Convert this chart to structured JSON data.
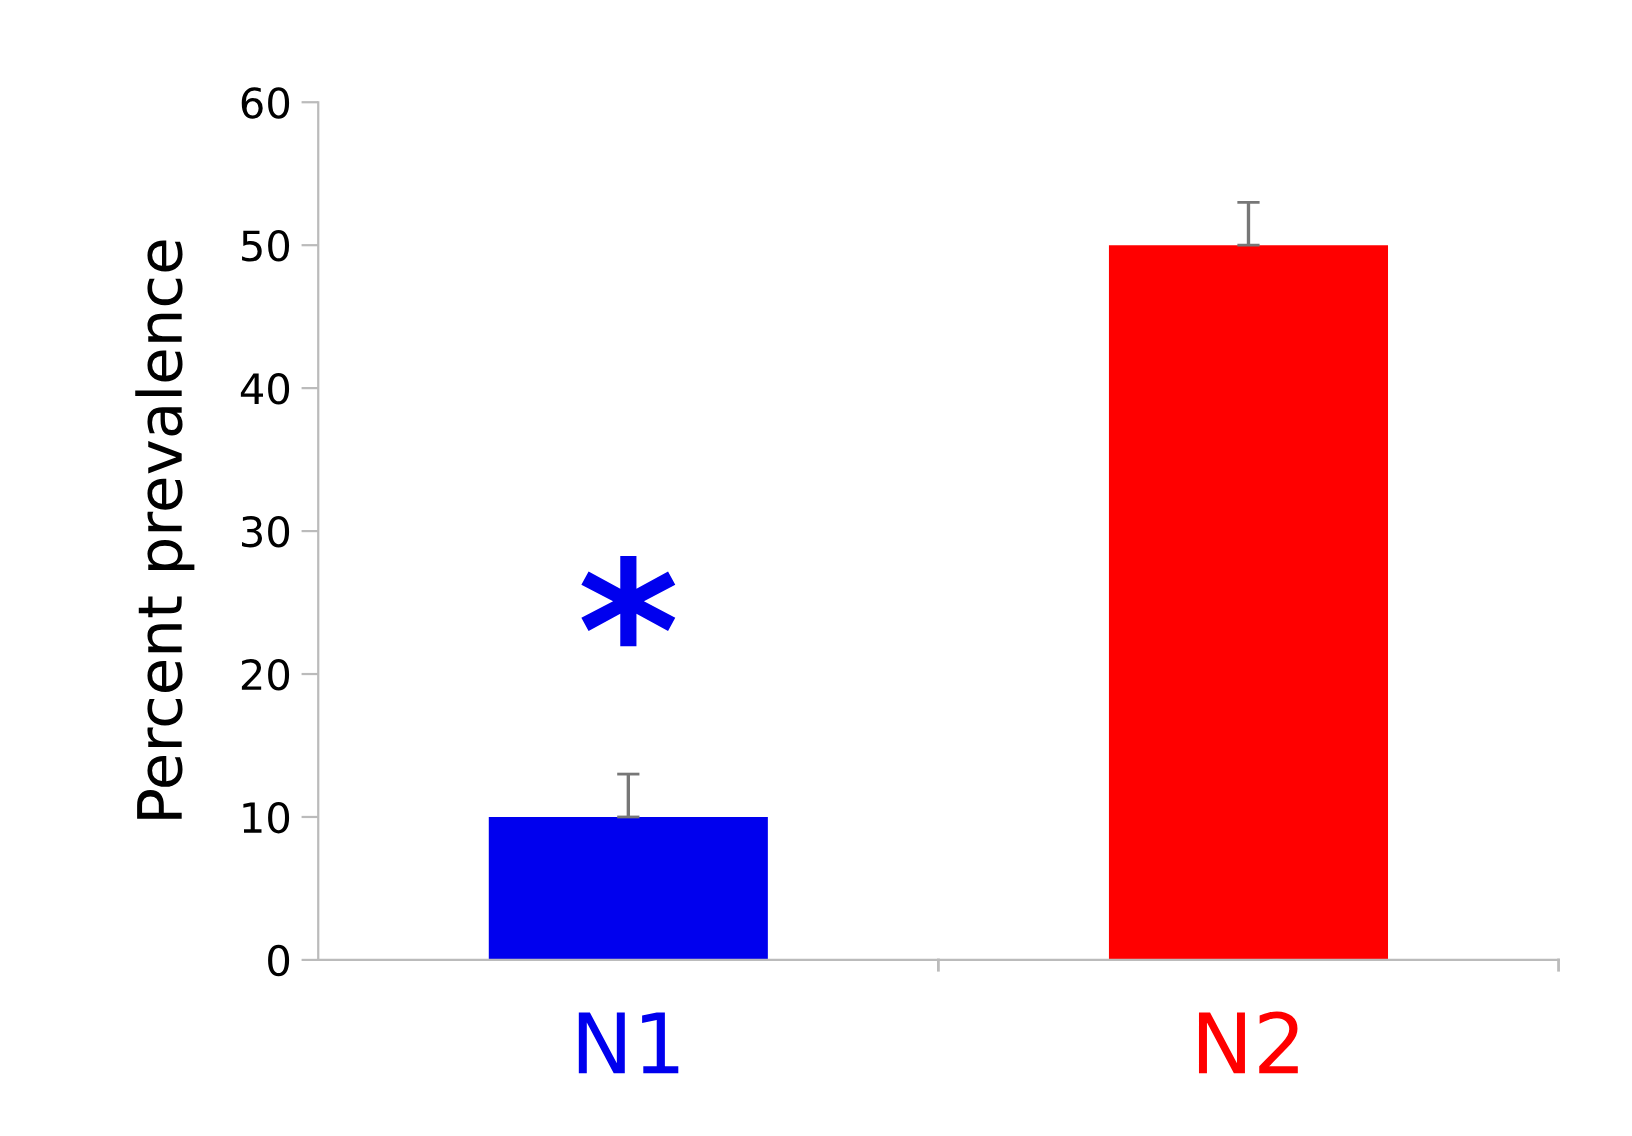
{
  "chart_data": {
    "type": "bar",
    "categories": [
      "N1",
      "N2"
    ],
    "values": [
      10,
      50
    ],
    "colors": [
      "#0000ee",
      "#ff0000"
    ],
    "errors": [
      3,
      3
    ],
    "ylabel": "Percent prevalence",
    "ylim": [
      0,
      60
    ],
    "yticks": [
      0,
      10,
      20,
      30,
      40,
      50,
      60
    ],
    "grid": false,
    "annotations": [
      "*"
    ]
  }
}
